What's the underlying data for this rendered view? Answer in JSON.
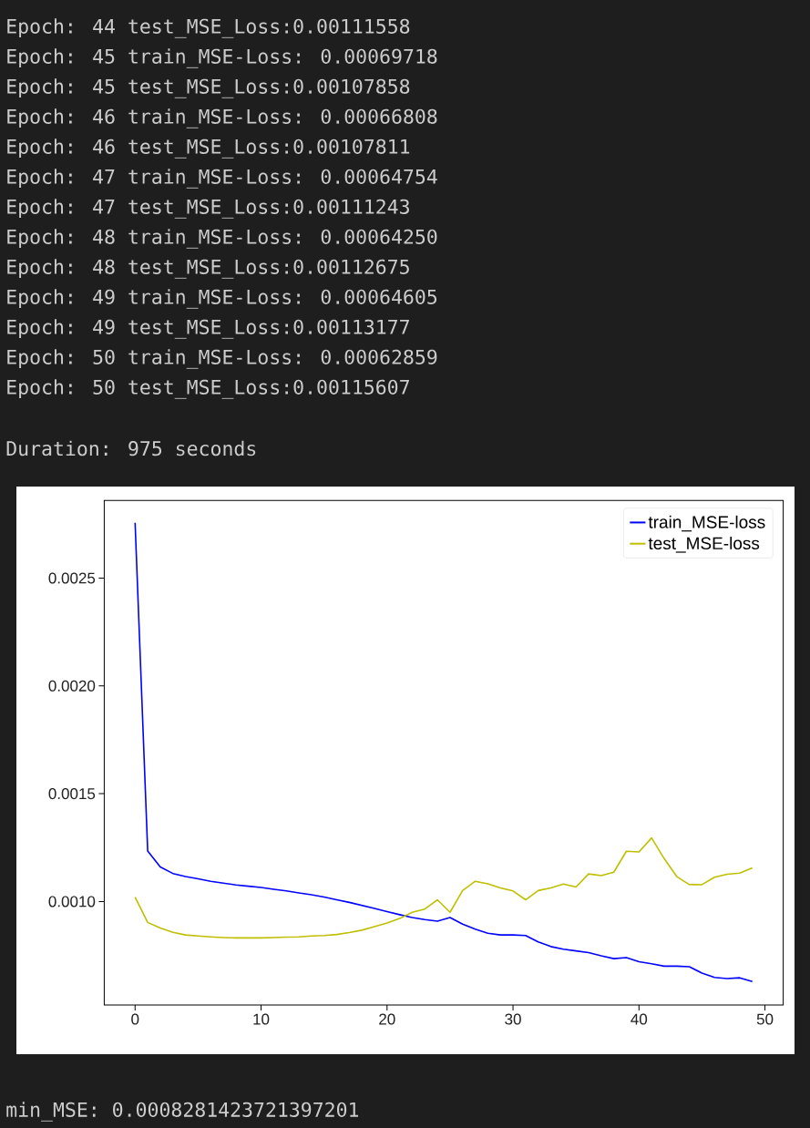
{
  "chart_data": {
    "type": "line",
    "annotations": [
      "Epoch: 44 test_MSE_Loss:0.00111558",
      "Epoch: 45 train_MSE-Loss: 0.00069718",
      "Epoch: 45 test_MSE_Loss:0.00107858",
      "Epoch: 46 train_MSE-Loss: 0.00066808",
      "Epoch: 46 test_MSE_Loss:0.00107811",
      "Epoch: 47 train_MSE-Loss: 0.00064754",
      "Epoch: 47 test_MSE_Loss:0.00111243",
      "Epoch: 48 train_MSE-Loss: 0.00064250",
      "Epoch: 48 test_MSE_Loss:0.00112675",
      "Epoch: 49 train_MSE-Loss: 0.00064605",
      "Epoch: 49 test_MSE_Loss:0.00113177",
      "Epoch: 50 train_MSE-Loss: 0.00062859",
      "Epoch: 50 test_MSE_Loss:0.00115607",
      "Duration: 975 seconds",
      "min_MSE: 0.0008281423721397201"
    ],
    "x": [
      0,
      1,
      2,
      3,
      4,
      5,
      6,
      7,
      8,
      9,
      10,
      11,
      12,
      13,
      14,
      15,
      16,
      17,
      18,
      19,
      20,
      21,
      22,
      23,
      24,
      25,
      26,
      27,
      28,
      29,
      30,
      31,
      32,
      33,
      34,
      35,
      36,
      37,
      38,
      39,
      40,
      41,
      42,
      43,
      44,
      45,
      46,
      47,
      48,
      49
    ],
    "series": [
      {
        "name": "train_MSE-loss",
        "color": "#0000ff",
        "values": [
          0.002757,
          0.001234,
          0.00116,
          0.00113,
          0.001116,
          0.001105,
          0.001094,
          0.001085,
          0.001077,
          0.001071,
          0.001065,
          0.001057,
          0.001049,
          0.00104,
          0.001031,
          0.001021,
          0.001008,
          0.000996,
          0.000982,
          0.000968,
          0.000953,
          0.000939,
          0.000926,
          0.000916,
          0.000909,
          0.000926,
          0.000895,
          0.000872,
          0.000853,
          0.000845,
          0.000845,
          0.000842,
          0.000813,
          0.000791,
          0.000779,
          0.000771,
          0.000763,
          0.000748,
          0.000735,
          0.00074,
          0.000721,
          0.000711,
          0.0007,
          0.0007,
          0.00069718,
          0.00066808,
          0.00064754,
          0.0006425,
          0.00064605,
          0.00062859
        ]
      },
      {
        "name": "test_MSE-loss",
        "color": "#bfbf00",
        "values": [
          0.00102,
          0.000903,
          0.000877,
          0.000857,
          0.000845,
          0.00084,
          0.000836,
          0.000833,
          0.000831,
          0.000831,
          0.000831,
          0.000833,
          0.000835,
          0.000836,
          0.00084,
          0.000842,
          0.000847,
          0.000856,
          0.000867,
          0.000883,
          0.0009,
          0.000921,
          0.00095,
          0.000965,
          0.001008,
          0.00095,
          0.001051,
          0.001094,
          0.001082,
          0.001063,
          0.001049,
          0.001008,
          0.001051,
          0.001063,
          0.001081,
          0.001067,
          0.001128,
          0.00112,
          0.001136,
          0.001233,
          0.00123,
          0.001295,
          0.001199,
          0.00111558,
          0.00107858,
          0.00107811,
          0.00111243,
          0.00112675,
          0.00113177,
          0.00115607
        ]
      }
    ],
    "xlim": [
      -2.45,
      51.45
    ],
    "ylim": [
      0.00052,
      0.00286
    ],
    "xticks": [
      0,
      10,
      20,
      30,
      40,
      50
    ],
    "yticks": [
      {
        "value": 0.001,
        "label": "0.0010"
      },
      {
        "value": 0.0015,
        "label": "0.0015"
      },
      {
        "value": 0.002,
        "label": "0.0020"
      },
      {
        "value": 0.0025,
        "label": "0.0025"
      }
    ],
    "legend": "top right",
    "grid": false,
    "marker": "none",
    "line_style": "solid"
  }
}
